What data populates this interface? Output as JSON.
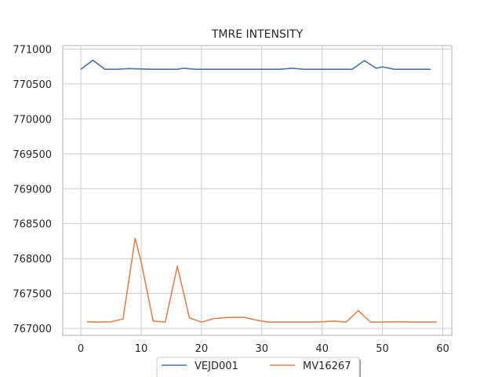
{
  "chart_data": {
    "type": "line",
    "title": "TMRE INTENSITY",
    "xlabel": "",
    "ylabel": "",
    "xlim": [
      -3,
      61.5
    ],
    "ylim": [
      766900,
      771050
    ],
    "x_ticks": [
      0,
      10,
      20,
      30,
      40,
      50,
      60
    ],
    "y_ticks": [
      767000,
      767500,
      768000,
      768500,
      769000,
      769500,
      770000,
      770500,
      771000
    ],
    "grid": true,
    "legend_placement": "bottom-center",
    "series": [
      {
        "name": "VEJD001",
        "color": "#4c72b0",
        "x": [
          0,
          2,
          4,
          6,
          8,
          10,
          12,
          14,
          16,
          17,
          19,
          21,
          23,
          25,
          27,
          29,
          31,
          33,
          35,
          37,
          39,
          41,
          43,
          45,
          47,
          49,
          50,
          52,
          54,
          56,
          58
        ],
        "y": [
          770710,
          770840,
          770710,
          770710,
          770720,
          770715,
          770710,
          770710,
          770710,
          770725,
          770710,
          770710,
          770710,
          770710,
          770710,
          770710,
          770710,
          770710,
          770725,
          770710,
          770710,
          770710,
          770710,
          770710,
          770835,
          770725,
          770745,
          770710,
          770710,
          770710,
          770710
        ]
      },
      {
        "name": "MV16267",
        "color": "#dd8452",
        "x": [
          1,
          3,
          5,
          7,
          9,
          10,
          12,
          14,
          16,
          18,
          20,
          22,
          24,
          27,
          29,
          31,
          33,
          35,
          37,
          39,
          42,
          44,
          46,
          48,
          50,
          53,
          55,
          57,
          59
        ],
        "y": [
          767095,
          767090,
          767095,
          767135,
          768290,
          767950,
          767105,
          767090,
          767890,
          767150,
          767090,
          767140,
          767155,
          767160,
          767120,
          767090,
          767090,
          767090,
          767090,
          767090,
          767105,
          767090,
          767255,
          767090,
          767090,
          767095,
          767090,
          767090,
          767090
        ]
      }
    ]
  }
}
